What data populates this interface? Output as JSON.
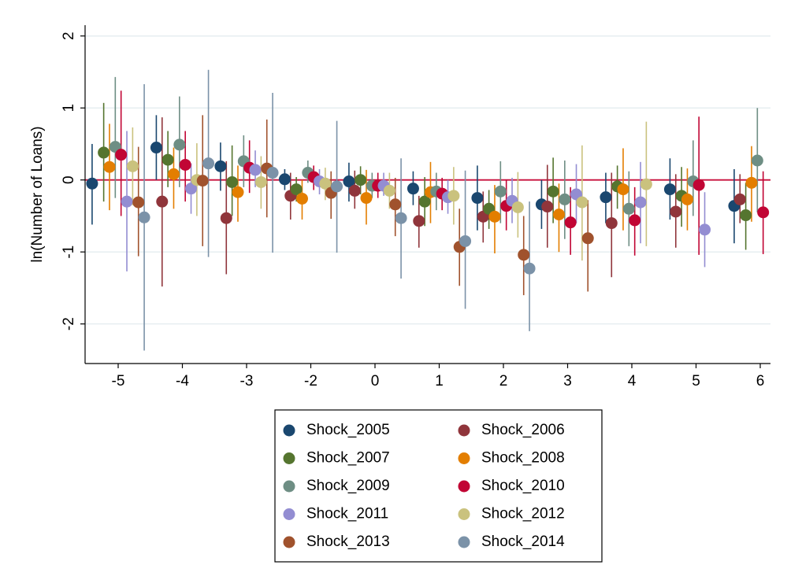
{
  "chart_data": {
    "type": "dot_ci",
    "y_label": "ln(Number of Loans)",
    "categories": [
      "-5",
      "-4",
      "-3",
      "-2",
      "0",
      "1",
      "2",
      "3",
      "4",
      "5",
      "6"
    ],
    "ylim": [
      -2.55,
      2.15
    ],
    "yticks": [
      -2,
      -1,
      0,
      1,
      2
    ],
    "grid": true,
    "ref_line": 0,
    "ref_color": "#c8103c",
    "series": [
      {
        "name": "Shock_2005",
        "color": "#1a476f",
        "values": [
          -0.05,
          0.45,
          0.19,
          0.01,
          -0.02,
          -0.12,
          -0.25,
          -0.34,
          -0.24,
          -0.13,
          -0.36
        ],
        "ci_low": [
          -0.62,
          0.0,
          -0.15,
          -0.14,
          -0.3,
          -0.35,
          -0.7,
          -0.68,
          -0.6,
          -0.55,
          -0.88
        ],
        "ci_high": [
          0.5,
          0.9,
          0.52,
          0.15,
          0.24,
          0.12,
          0.2,
          0.0,
          0.1,
          0.3,
          0.15
        ]
      },
      {
        "name": "Shock_2006",
        "color": "#90353b",
        "values": [
          null,
          -0.3,
          -0.53,
          -0.22,
          -0.15,
          -0.57,
          -0.51,
          -0.37,
          -0.6,
          -0.44,
          -0.27
        ],
        "ci_low": [
          null,
          -1.48,
          -1.31,
          -0.55,
          -0.4,
          -0.94,
          -0.87,
          -0.94,
          -1.35,
          -0.94,
          -0.6
        ],
        "ci_high": [
          null,
          0.87,
          0.26,
          0.1,
          0.13,
          -0.22,
          -0.16,
          0.21,
          0.1,
          0.08,
          0.08
        ]
      },
      {
        "name": "Shock_2007",
        "color": "#55752f",
        "values": [
          0.38,
          0.28,
          -0.03,
          -0.13,
          0.0,
          -0.3,
          -0.4,
          -0.16,
          -0.09,
          -0.22,
          -0.49
        ],
        "ci_low": [
          -0.3,
          -0.1,
          -0.5,
          -0.3,
          -0.2,
          -0.64,
          -0.68,
          -0.6,
          -0.4,
          -0.65,
          -0.97
        ],
        "ci_high": [
          1.07,
          0.68,
          0.48,
          0.04,
          0.19,
          0.04,
          -0.14,
          0.31,
          0.2,
          0.18,
          -0.04
        ]
      },
      {
        "name": "Shock_2008",
        "color": "#e37e00",
        "values": [
          0.18,
          0.08,
          -0.17,
          -0.26,
          -0.25,
          -0.17,
          -0.51,
          -0.48,
          -0.13,
          -0.27,
          -0.04
        ],
        "ci_low": [
          -0.42,
          -0.4,
          -0.58,
          -0.55,
          -0.62,
          -0.6,
          -1.02,
          -1.0,
          -0.7,
          -0.7,
          -0.58
        ],
        "ci_high": [
          0.78,
          0.45,
          0.2,
          0.0,
          0.14,
          0.25,
          -0.07,
          -0.05,
          0.44,
          0.16,
          0.47
        ]
      },
      {
        "name": "Shock_2009",
        "color": "#6e8e84",
        "values": [
          0.46,
          0.49,
          0.26,
          0.1,
          -0.08,
          -0.16,
          -0.16,
          -0.27,
          -0.4,
          -0.02,
          0.27
        ],
        "ci_low": [
          -0.25,
          -0.1,
          -0.1,
          -0.04,
          -0.25,
          -0.42,
          -0.6,
          -0.82,
          -0.92,
          -0.5,
          -0.45
        ],
        "ci_high": [
          1.43,
          1.16,
          0.62,
          0.27,
          0.1,
          0.1,
          0.26,
          0.27,
          0.12,
          0.55,
          1.0
        ]
      },
      {
        "name": "Shock_2010",
        "color": "#c10534",
        "values": [
          0.35,
          0.21,
          0.17,
          0.04,
          -0.08,
          -0.19,
          -0.36,
          -0.59,
          -0.56,
          -0.07,
          -0.45
        ],
        "ci_low": [
          -0.5,
          -0.3,
          -0.18,
          -0.14,
          -0.25,
          -0.42,
          -0.7,
          -1.04,
          -1.05,
          -1.04,
          -1.03
        ],
        "ci_high": [
          1.24,
          0.68,
          0.55,
          0.2,
          0.1,
          0.03,
          0.0,
          -0.1,
          -0.1,
          0.88,
          0.12
        ]
      },
      {
        "name": "Shock_2011",
        "color": "#938dd2",
        "values": [
          -0.3,
          -0.12,
          0.14,
          -0.02,
          -0.08,
          -0.24,
          -0.29,
          -0.2,
          -0.31,
          -0.69,
          null
        ],
        "ci_low": [
          -1.27,
          -0.47,
          -0.1,
          -0.2,
          -0.22,
          -0.47,
          -0.6,
          -0.6,
          -0.88,
          -1.21,
          null
        ],
        "ci_high": [
          0.68,
          0.23,
          0.41,
          0.15,
          0.1,
          0.0,
          0.03,
          0.22,
          0.25,
          -0.17,
          null
        ]
      },
      {
        "name": "Shock_2012",
        "color": "#cac27e",
        "values": [
          0.19,
          0.0,
          -0.03,
          -0.05,
          -0.15,
          -0.22,
          -0.38,
          -0.31,
          -0.06,
          null,
          null
        ],
        "ci_low": [
          -0.35,
          -0.5,
          -0.4,
          -0.28,
          -0.4,
          -0.62,
          -0.8,
          -1.12,
          -0.92,
          null,
          null
        ],
        "ci_high": [
          0.73,
          0.51,
          0.33,
          0.17,
          0.1,
          0.18,
          0.11,
          0.48,
          0.81,
          null,
          null
        ]
      },
      {
        "name": "Shock_2013",
        "color": "#a0522d",
        "values": [
          -0.31,
          -0.01,
          0.16,
          -0.18,
          -0.34,
          -0.93,
          -1.04,
          -0.81,
          null,
          null,
          null
        ],
        "ci_low": [
          -1.06,
          -0.92,
          -0.52,
          -0.54,
          -0.78,
          -1.47,
          -1.6,
          -1.55,
          null,
          null,
          null
        ],
        "ci_high": [
          0.46,
          0.9,
          0.84,
          0.12,
          0.03,
          -0.4,
          -0.5,
          -0.28,
          null,
          null,
          null
        ]
      },
      {
        "name": "Shock_2014",
        "color": "#7b92a8",
        "values": [
          -0.52,
          0.23,
          0.1,
          -0.09,
          -0.53,
          -0.85,
          -1.23,
          null,
          null,
          null,
          null
        ],
        "ci_low": [
          -2.37,
          -1.07,
          -1.01,
          -1.01,
          -1.37,
          -1.79,
          -2.1,
          null,
          null,
          null,
          null
        ],
        "ci_high": [
          1.33,
          1.53,
          1.21,
          0.82,
          0.3,
          0.13,
          -0.3,
          null,
          null,
          null,
          null
        ]
      }
    ]
  }
}
